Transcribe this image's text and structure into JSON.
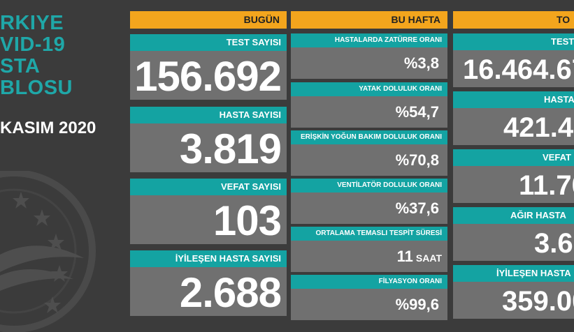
{
  "left": {
    "title_lines": [
      "RKIYE",
      "VID-19",
      "STA",
      "BLOSU"
    ],
    "date": "KASIM 2020"
  },
  "headers": {
    "today": "BUGÜN",
    "this_week": "BU HAFTA",
    "total": "TO"
  },
  "today": [
    {
      "label": "TEST SAYISI",
      "value": "156.692"
    },
    {
      "label": "HASTA SAYISI",
      "value": "3.819"
    },
    {
      "label": "VEFAT SAYISI",
      "value": "103"
    },
    {
      "label": "İYİLEŞEN HASTA SAYISI",
      "value": "2.688"
    }
  ],
  "week": [
    {
      "label": "HASTALARDA ZATÜRRE ORANI",
      "value": "%3,8",
      "unit": ""
    },
    {
      "label": "YATAK DOLULUK ORANI",
      "value": "%54,7",
      "unit": ""
    },
    {
      "label": "ERİŞKİN YOĞUN BAKIM DOLULUK ORANI",
      "value": "%70,8",
      "unit": ""
    },
    {
      "label": "VENTİLATÖR DOLULUK ORANI",
      "value": "%37,6",
      "unit": ""
    },
    {
      "label": "ORTALAMA TEMASLI TESPİT SÜRESİ",
      "value": "11",
      "unit": "SAAT"
    },
    {
      "label": "FİLYASYON ORANI",
      "value": "%99,6",
      "unit": ""
    }
  ],
  "total": [
    {
      "label": "TEST",
      "value": "16.464.67"
    },
    {
      "label": "HASTA",
      "value": "421.4"
    },
    {
      "label": "VEFAT",
      "value": "11.70"
    },
    {
      "label": "AĞIR HASTA",
      "value": "3.6"
    },
    {
      "label": "İYİLEŞEN HASTA",
      "value": "359.00"
    }
  ],
  "colors": {
    "background": "#3b3b3b",
    "header": "#f3a51d",
    "label": "#14a3a2",
    "value_bg": "#707070",
    "title": "#1fa7a8"
  }
}
